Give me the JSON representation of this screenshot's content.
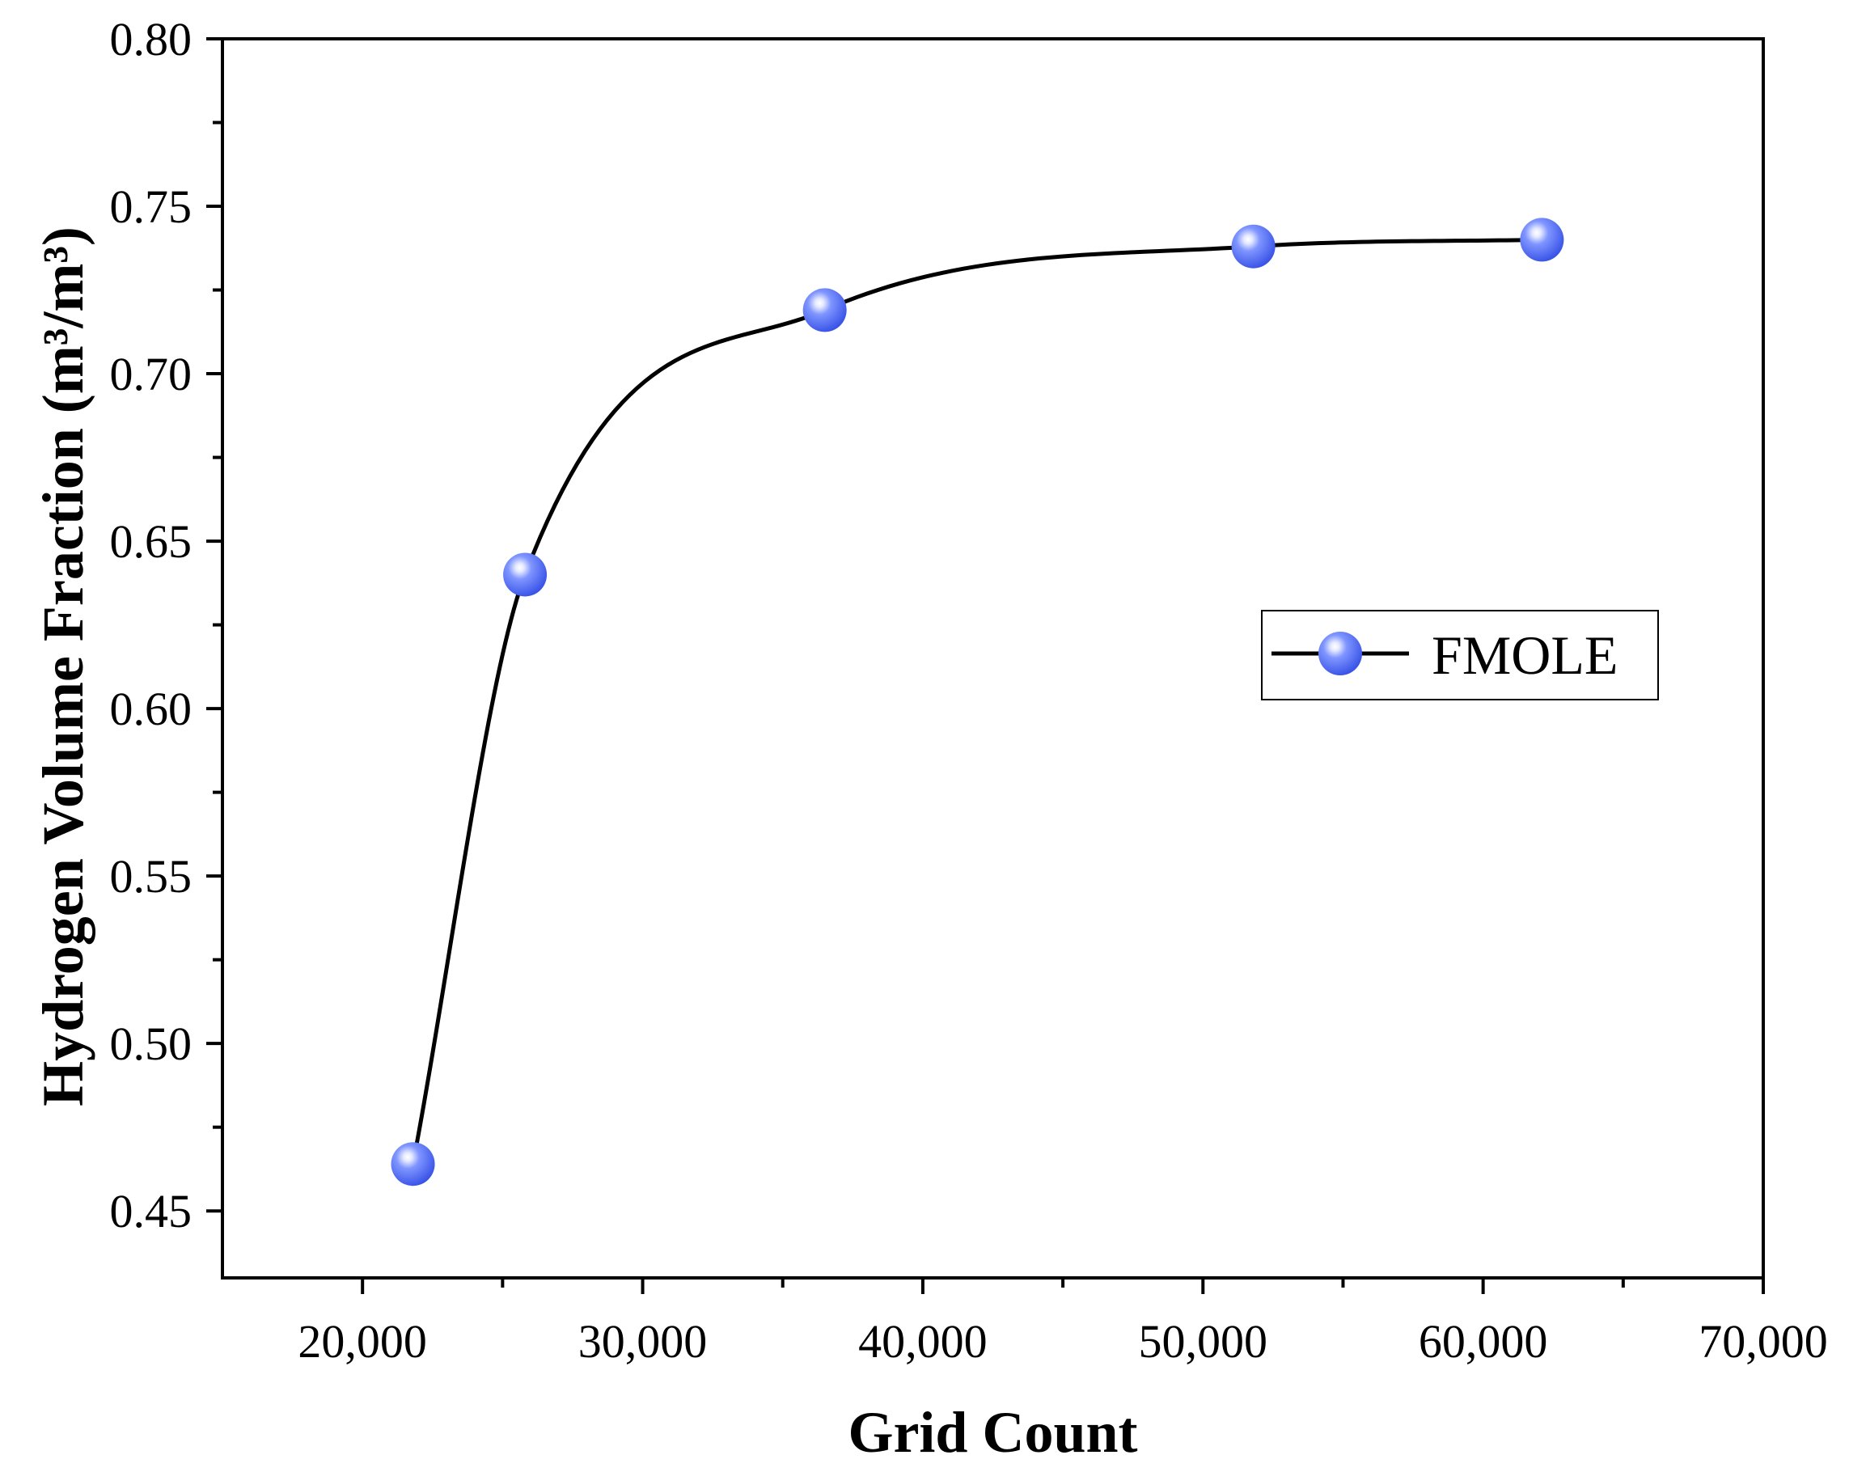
{
  "chart_data": {
    "type": "line",
    "title": "",
    "xlabel": "Grid Count",
    "ylabel": "Hydrogen Volume Fraction (m³/m³)",
    "xlim": [
      15000,
      70000
    ],
    "ylim": [
      0.43,
      0.8
    ],
    "x_ticks": [
      20000,
      30000,
      40000,
      50000,
      60000,
      70000
    ],
    "x_tick_labels": [
      "20,000",
      "30,000",
      "40,000",
      "50,000",
      "60,000",
      "70,000"
    ],
    "y_ticks": [
      0.45,
      0.5,
      0.55,
      0.6,
      0.65,
      0.7,
      0.75,
      0.8
    ],
    "y_tick_labels": [
      "0.45",
      "0.50",
      "0.55",
      "0.60",
      "0.65",
      "0.70",
      "0.75",
      "0.80"
    ],
    "grid": false,
    "legend_position": "right-middle",
    "series": [
      {
        "name": "FMOLE",
        "x": [
          21800,
          25800,
          36500,
          51800,
          62100
        ],
        "y": [
          0.464,
          0.64,
          0.719,
          0.738,
          0.74
        ],
        "line_color": "#000000",
        "marker_color": "#4f6cf7",
        "marker": "circle",
        "smooth": true
      }
    ]
  }
}
